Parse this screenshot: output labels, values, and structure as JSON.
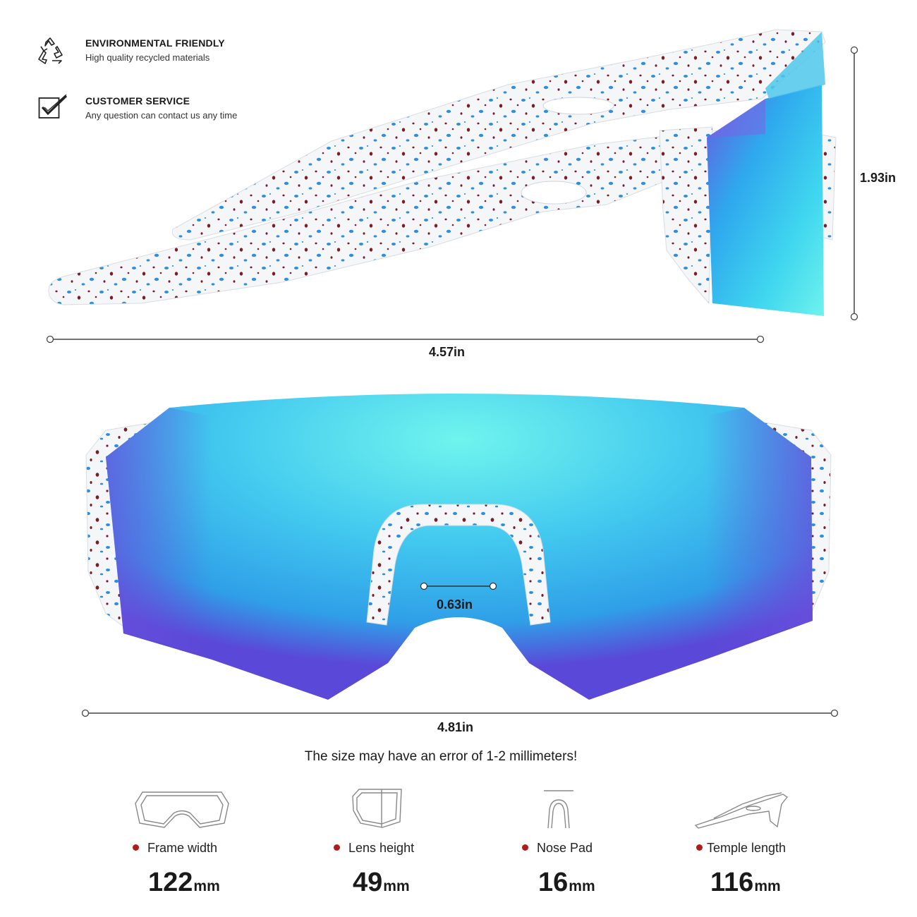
{
  "features": [
    {
      "icon": "recycle-icon",
      "title": "ENVIRONMENTAL FRIENDLY",
      "subtitle": "High quality recycled materials"
    },
    {
      "icon": "checkmark-box-icon",
      "title": "CUSTOMER SERVICE",
      "subtitle": "Any question can contact us any time"
    }
  ],
  "dimensions": {
    "side_height": "1.93in",
    "side_length": "4.57in",
    "nose_width": "0.63in",
    "front_width": "4.81in"
  },
  "note": "The size may have an error of 1-2 millimeters!",
  "specs": [
    {
      "icon": "frame-outline-icon",
      "label": "Frame width",
      "value": "122",
      "unit": "mm"
    },
    {
      "icon": "lens-outline-icon",
      "label": "Lens height",
      "value": "49",
      "unit": "mm"
    },
    {
      "icon": "nose-pad-outline-icon",
      "label": "Nose Pad",
      "value": "16",
      "unit": "mm"
    },
    {
      "icon": "temple-outline-icon",
      "label": "Temple length",
      "value": "116",
      "unit": "mm"
    }
  ],
  "colors": {
    "lens_center": "#6ff2ee",
    "lens_mid": "#35b8ee",
    "lens_edge": "#5a4fd8",
    "frame": "#f4f6f8",
    "speckle_red": "#7a1e2a",
    "speckle_blue": "#2f8fdc",
    "bullet": "#b01c1c"
  }
}
